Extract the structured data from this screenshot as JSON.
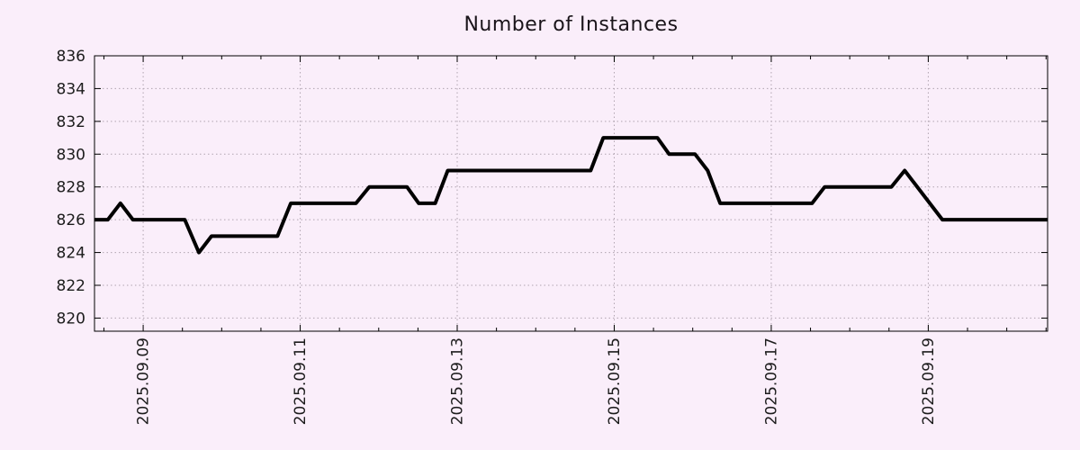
{
  "colors": {
    "background": "#faeefa",
    "grid": "#b0a4b0",
    "axis": "#000000",
    "line": "#000000",
    "text": "#1c1c1c"
  },
  "chart_data": {
    "type": "line",
    "title": "Number of Instances",
    "legend": "none",
    "grid": "dotted",
    "x_axis": {
      "unit": "days since 2025.09.09 00:00",
      "tick_labels": [
        "2025.09.09",
        "2025.09.11",
        "2025.09.13",
        "2025.09.15",
        "2025.09.17",
        "2025.09.19"
      ],
      "tick_positions_days": [
        0,
        2,
        4,
        6,
        8,
        10
      ],
      "minor_tick_step_days": 0.5,
      "range_days": [
        -0.62,
        11.52
      ],
      "label_rotation_deg": -90
    },
    "y_axis": {
      "tick_labels": [
        "820",
        "822",
        "824",
        "826",
        "828",
        "830",
        "832",
        "834",
        "836"
      ],
      "tick_values": [
        820,
        822,
        824,
        826,
        828,
        830,
        832,
        834,
        836
      ],
      "range": [
        819.2,
        836
      ]
    },
    "series": [
      {
        "name": "instances",
        "color": "#000000",
        "line_width": 4,
        "points_day_value": [
          [
            -0.62,
            826
          ],
          [
            -0.45,
            826
          ],
          [
            -0.29,
            827
          ],
          [
            -0.13,
            826
          ],
          [
            0.53,
            826
          ],
          [
            0.71,
            824
          ],
          [
            0.87,
            825
          ],
          [
            1.71,
            825
          ],
          [
            1.88,
            827
          ],
          [
            2.71,
            827
          ],
          [
            2.88,
            828
          ],
          [
            3.36,
            828
          ],
          [
            3.51,
            827
          ],
          [
            3.72,
            827
          ],
          [
            3.88,
            829
          ],
          [
            5.7,
            829
          ],
          [
            5.86,
            831
          ],
          [
            6.55,
            831
          ],
          [
            6.7,
            830
          ],
          [
            7.03,
            830
          ],
          [
            7.19,
            829
          ],
          [
            7.35,
            827
          ],
          [
            8.52,
            827
          ],
          [
            8.68,
            828
          ],
          [
            9.53,
            828
          ],
          [
            9.7,
            829
          ],
          [
            10.18,
            826
          ],
          [
            11.52,
            826
          ]
        ]
      }
    ]
  }
}
